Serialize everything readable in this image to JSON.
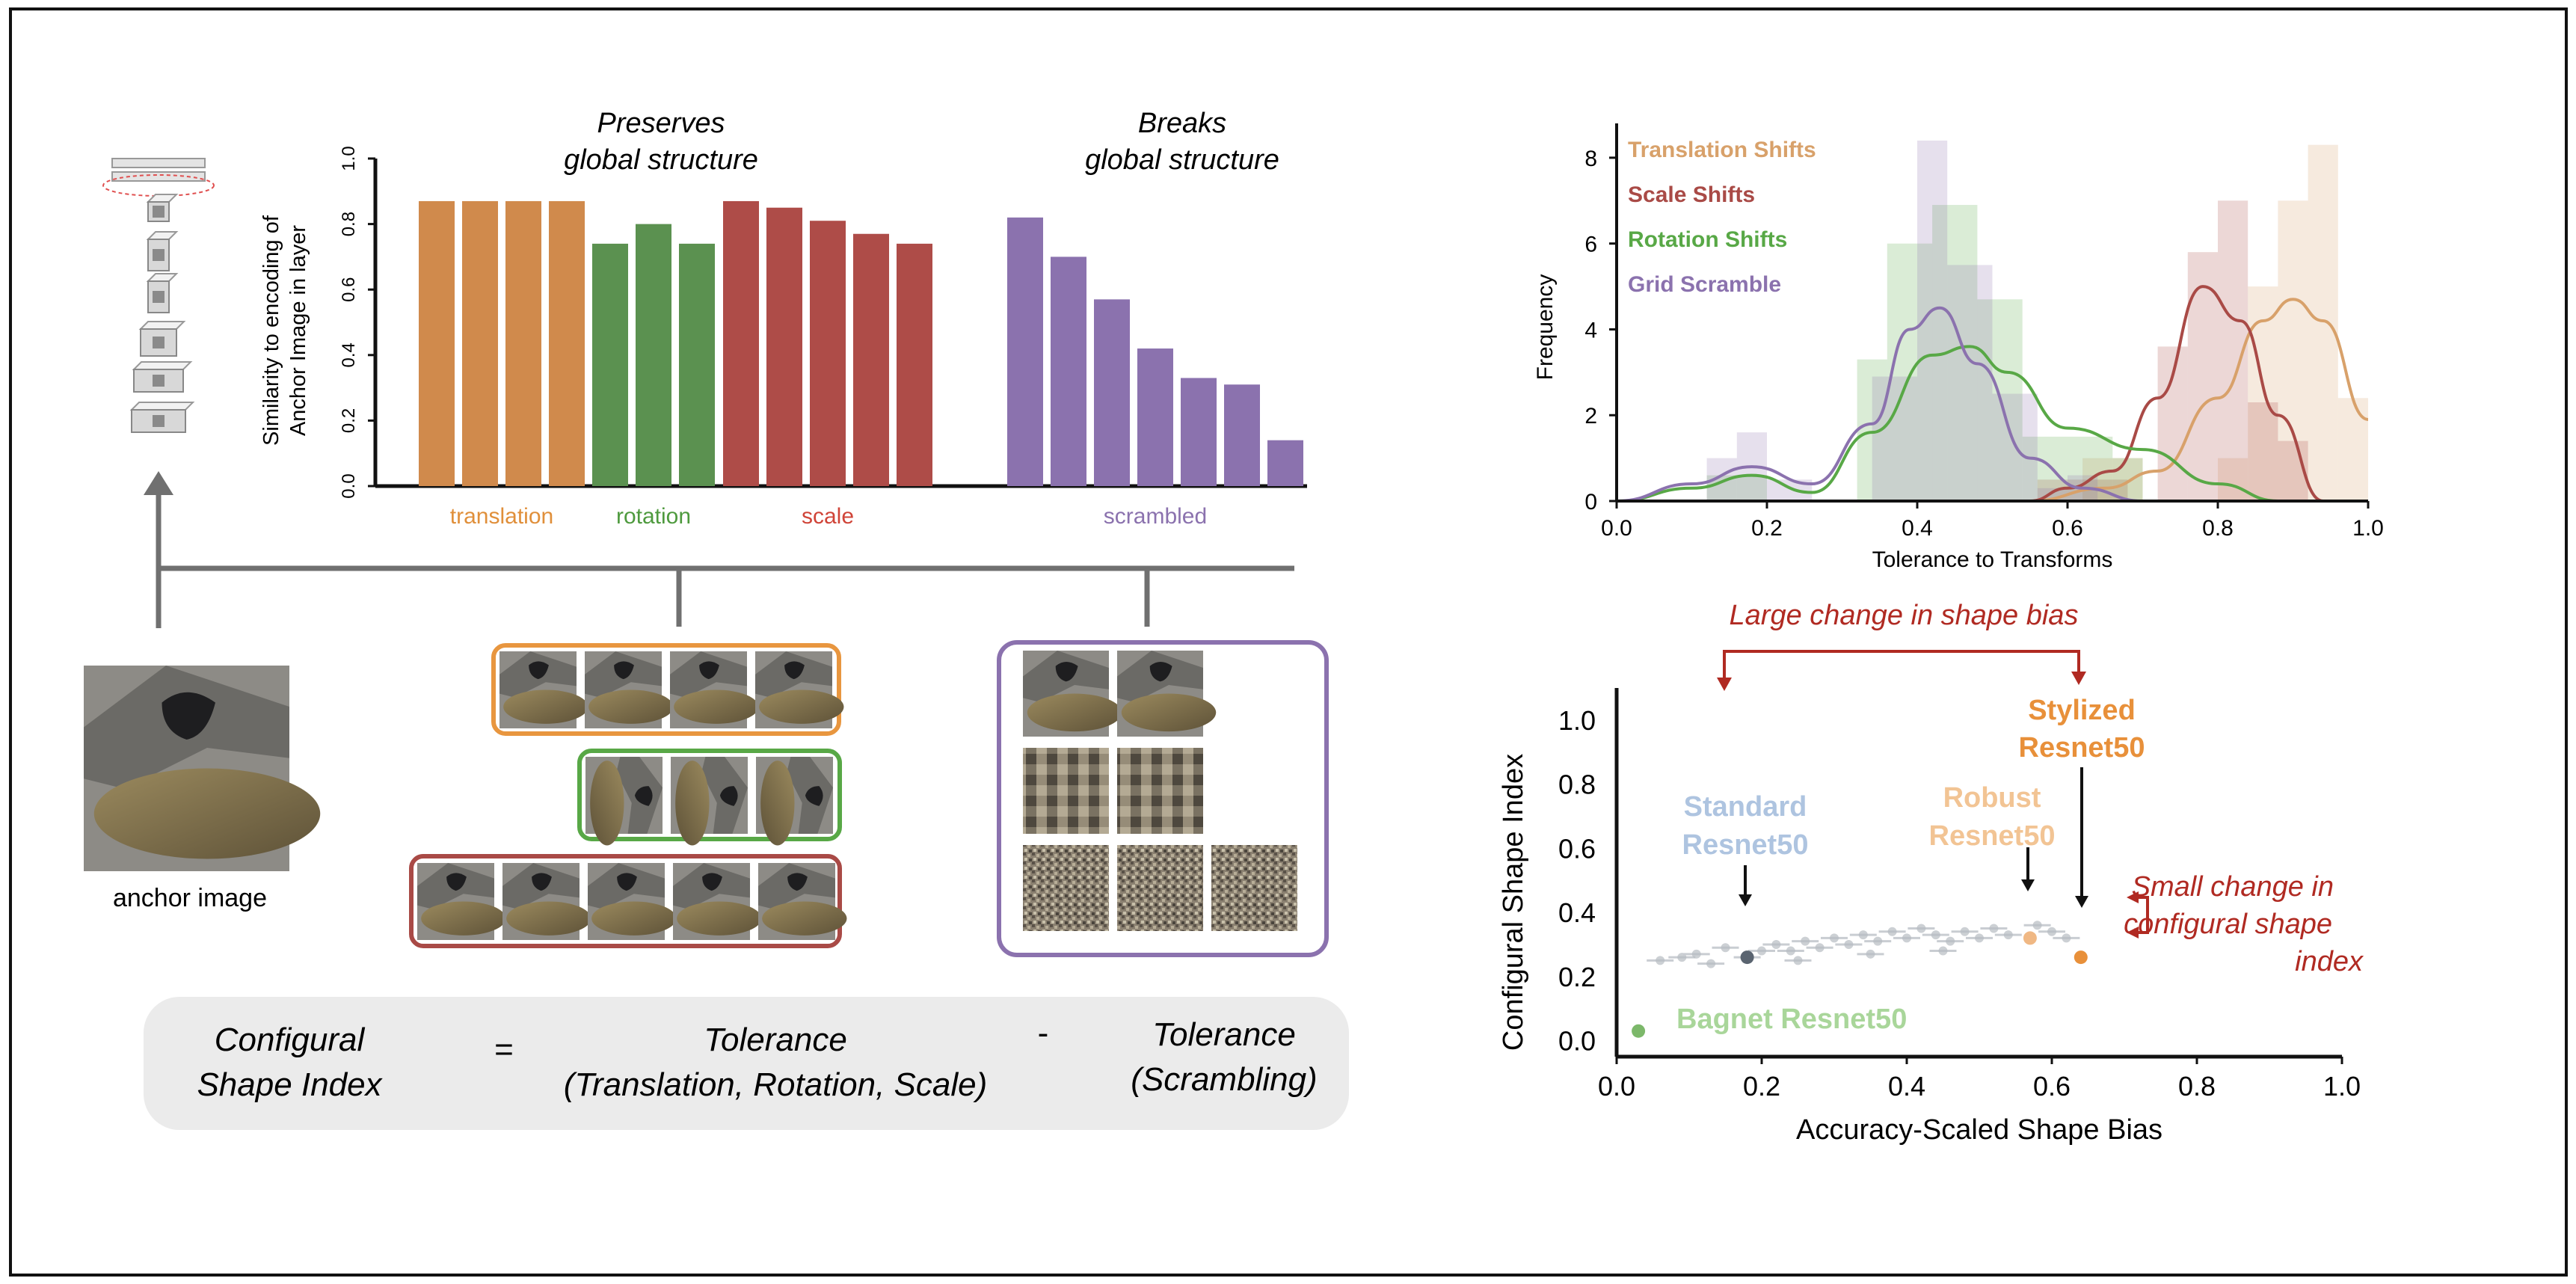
{
  "bar_panel": {
    "title_left": [
      "Preserves",
      "global structure"
    ],
    "title_right": [
      "Breaks",
      "global structure"
    ],
    "ylabel": [
      "Similarity to encoding of",
      "Anchor Image in layer"
    ],
    "ylim": [
      0,
      1.0
    ],
    "yticks": [
      "0.0",
      "0.2",
      "0.4",
      "0.6",
      "0.8",
      "1.0"
    ],
    "groups": [
      {
        "label": "translation",
        "color": "#d08a4c",
        "label_color": "#e08f3a",
        "values": [
          0.87,
          0.87,
          0.87,
          0.87
        ]
      },
      {
        "label": "rotation",
        "color": "#5b9150",
        "label_color": "#4e9a3e",
        "values": [
          0.74,
          0.8,
          0.74
        ]
      },
      {
        "label": "scale",
        "color": "#ae4c48",
        "label_color": "#d04438",
        "values": [
          0.87,
          0.85,
          0.81,
          0.77,
          0.74
        ]
      },
      {
        "label": "scrambled",
        "color": "#8b72ae",
        "label_color": "#8b72ae",
        "values": [
          0.82,
          0.7,
          0.57,
          0.42,
          0.33,
          0.31,
          0.14
        ]
      }
    ]
  },
  "anchor": {
    "label": "anchor image"
  },
  "equation": {
    "lhs": [
      "Configural",
      "Shape Index"
    ],
    "eq": "=",
    "term1": [
      "Tolerance",
      "(Translation, Rotation, Scale)"
    ],
    "minus": "-",
    "term2": [
      "Tolerance",
      "(Scrambling)"
    ]
  },
  "colors": {
    "translation": "#e8963f",
    "rotation": "#58a846",
    "scale": "#a94a46",
    "scramble": "#8b72ae"
  },
  "chart_data": [
    {
      "type": "histogram",
      "xlabel": "Tolerance to Transforms",
      "ylabel": "Frequency",
      "xlim": [
        0,
        1.0
      ],
      "ylim": [
        0,
        8.8
      ],
      "xticks": [
        "0.0",
        "0.2",
        "0.4",
        "0.6",
        "0.8",
        "1.0"
      ],
      "yticks": [
        "0",
        "2",
        "4",
        "6",
        "8"
      ],
      "series": [
        {
          "name": "Translation Shifts",
          "color": "#d8a16a",
          "bins": [
            [
              0.62,
              0.66,
              1
            ],
            [
              0.66,
              0.7,
              1
            ],
            [
              0.8,
              0.84,
              1
            ],
            [
              0.84,
              0.88,
              5
            ],
            [
              0.88,
              0.92,
              7
            ],
            [
              0.92,
              0.96,
              8.3
            ],
            [
              0.96,
              1.0,
              2.4
            ]
          ],
          "curve": [
            [
              0.55,
              0
            ],
            [
              0.65,
              0.3
            ],
            [
              0.72,
              0.7
            ],
            [
              0.8,
              2.4
            ],
            [
              0.86,
              4.2
            ],
            [
              0.9,
              4.7
            ],
            [
              0.94,
              4.2
            ],
            [
              1.0,
              1.9
            ]
          ]
        },
        {
          "name": "Scale Shifts",
          "color": "#a94a46",
          "bins": [
            [
              0.56,
              0.6,
              0.5
            ],
            [
              0.6,
              0.64,
              0.5
            ],
            [
              0.64,
              0.68,
              0.5
            ],
            [
              0.72,
              0.76,
              3.6
            ],
            [
              0.76,
              0.8,
              5.8
            ],
            [
              0.8,
              0.84,
              7
            ],
            [
              0.84,
              0.88,
              2.3
            ],
            [
              0.88,
              0.92,
              1.4
            ]
          ],
          "curve": [
            [
              0.55,
              0
            ],
            [
              0.6,
              0.3
            ],
            [
              0.66,
              0.7
            ],
            [
              0.72,
              2.4
            ],
            [
              0.78,
              5.0
            ],
            [
              0.83,
              4.2
            ],
            [
              0.88,
              2
            ],
            [
              0.94,
              0
            ]
          ]
        },
        {
          "name": "Rotation Shifts",
          "color": "#58a846",
          "bins": [
            [
              0.12,
              0.16,
              0.6
            ],
            [
              0.16,
              0.2,
              0.6
            ],
            [
              0.32,
              0.36,
              3.3
            ],
            [
              0.36,
              0.42,
              6
            ],
            [
              0.42,
              0.48,
              6.9
            ],
            [
              0.48,
              0.54,
              4.7
            ],
            [
              0.54,
              0.58,
              1.5
            ],
            [
              0.58,
              0.62,
              1.5
            ],
            [
              0.62,
              0.66,
              1.5
            ],
            [
              0.66,
              0.7,
              1
            ]
          ],
          "curve": [
            [
              0.0,
              0
            ],
            [
              0.1,
              0.3
            ],
            [
              0.18,
              0.6
            ],
            [
              0.26,
              0.2
            ],
            [
              0.34,
              1.6
            ],
            [
              0.42,
              3.4
            ],
            [
              0.47,
              3.6
            ],
            [
              0.52,
              3.0
            ],
            [
              0.6,
              1.7
            ],
            [
              0.7,
              1.2
            ],
            [
              0.8,
              0.4
            ],
            [
              0.88,
              0
            ]
          ]
        },
        {
          "name": "Grid Scramble",
          "color": "#8b72ae",
          "bins": [
            [
              0.12,
              0.16,
              1
            ],
            [
              0.16,
              0.2,
              1.6
            ],
            [
              0.2,
              0.26,
              0.5
            ],
            [
              0.34,
              0.4,
              2.9
            ],
            [
              0.4,
              0.44,
              8.4
            ],
            [
              0.44,
              0.5,
              5.5
            ],
            [
              0.5,
              0.56,
              2.5
            ],
            [
              0.56,
              0.6,
              0.3
            ],
            [
              0.6,
              0.64,
              0.6
            ]
          ],
          "curve": [
            [
              0.0,
              0
            ],
            [
              0.1,
              0.4
            ],
            [
              0.18,
              0.8
            ],
            [
              0.26,
              0.4
            ],
            [
              0.34,
              1.8
            ],
            [
              0.39,
              4.0
            ],
            [
              0.43,
              4.5
            ],
            [
              0.48,
              3.2
            ],
            [
              0.55,
              1.0
            ],
            [
              0.62,
              0.3
            ],
            [
              0.7,
              0
            ]
          ]
        }
      ]
    },
    {
      "type": "scatter",
      "xlabel": "Accuracy-Scaled Shape Bias",
      "ylabel": "Configural Shape Index",
      "xlim": [
        0,
        1.0
      ],
      "ylim": [
        -0.05,
        1.1
      ],
      "xticks": [
        "0.0",
        "0.2",
        "0.4",
        "0.6",
        "0.8",
        "1.0"
      ],
      "yticks": [
        "1.0",
        "0.8",
        "0.6",
        "0.4",
        "0.2",
        "0.0"
      ],
      "points": [
        {
          "x": 0.06,
          "y": 0.25
        },
        {
          "x": 0.09,
          "y": 0.26
        },
        {
          "x": 0.11,
          "y": 0.27
        },
        {
          "x": 0.13,
          "y": 0.24
        },
        {
          "x": 0.15,
          "y": 0.29
        },
        {
          "x": 0.18,
          "y": 0.26
        },
        {
          "x": 0.2,
          "y": 0.28
        },
        {
          "x": 0.22,
          "y": 0.3
        },
        {
          "x": 0.24,
          "y": 0.28
        },
        {
          "x": 0.26,
          "y": 0.31
        },
        {
          "x": 0.28,
          "y": 0.29
        },
        {
          "x": 0.3,
          "y": 0.32
        },
        {
          "x": 0.32,
          "y": 0.3
        },
        {
          "x": 0.34,
          "y": 0.33
        },
        {
          "x": 0.36,
          "y": 0.31
        },
        {
          "x": 0.38,
          "y": 0.34
        },
        {
          "x": 0.4,
          "y": 0.32
        },
        {
          "x": 0.42,
          "y": 0.35
        },
        {
          "x": 0.44,
          "y": 0.33
        },
        {
          "x": 0.46,
          "y": 0.31
        },
        {
          "x": 0.48,
          "y": 0.34
        },
        {
          "x": 0.5,
          "y": 0.32
        },
        {
          "x": 0.52,
          "y": 0.35
        },
        {
          "x": 0.54,
          "y": 0.33
        },
        {
          "x": 0.58,
          "y": 0.36
        },
        {
          "x": 0.6,
          "y": 0.34
        },
        {
          "x": 0.62,
          "y": 0.32
        },
        {
          "x": 0.25,
          "y": 0.25
        },
        {
          "x": 0.35,
          "y": 0.27
        },
        {
          "x": 0.45,
          "y": 0.28
        }
      ],
      "highlight": [
        {
          "name": "Standard Resnet50",
          "x": 0.18,
          "y": 0.26,
          "color": "#5a6470"
        },
        {
          "name": "Robust Resnet50",
          "x": 0.57,
          "y": 0.32,
          "color": "#f0b884"
        },
        {
          "name": "Stylized Resnet50",
          "x": 0.64,
          "y": 0.26,
          "color": "#e8903a"
        },
        {
          "name": "Bagnet Resnet50",
          "x": 0.03,
          "y": 0.03,
          "color": "#7cb86a"
        }
      ],
      "labels": {
        "standard": [
          "Standard",
          "Resnet50"
        ],
        "robust": [
          "Robust",
          "Resnet50"
        ],
        "stylized": [
          "Stylized",
          "Resnet50"
        ],
        "bagnet": "Bagnet Resnet50"
      },
      "label_colors": {
        "standard": "#aec4e0",
        "robust": "#f2c494",
        "stylized": "#e8903a",
        "bagnet": "#a9d69a"
      },
      "annotations": {
        "large": "Large change in shape bias",
        "small": [
          "Small change in",
          "configural shape",
          "index"
        ]
      },
      "annotation_color": "#b02a22"
    }
  ]
}
